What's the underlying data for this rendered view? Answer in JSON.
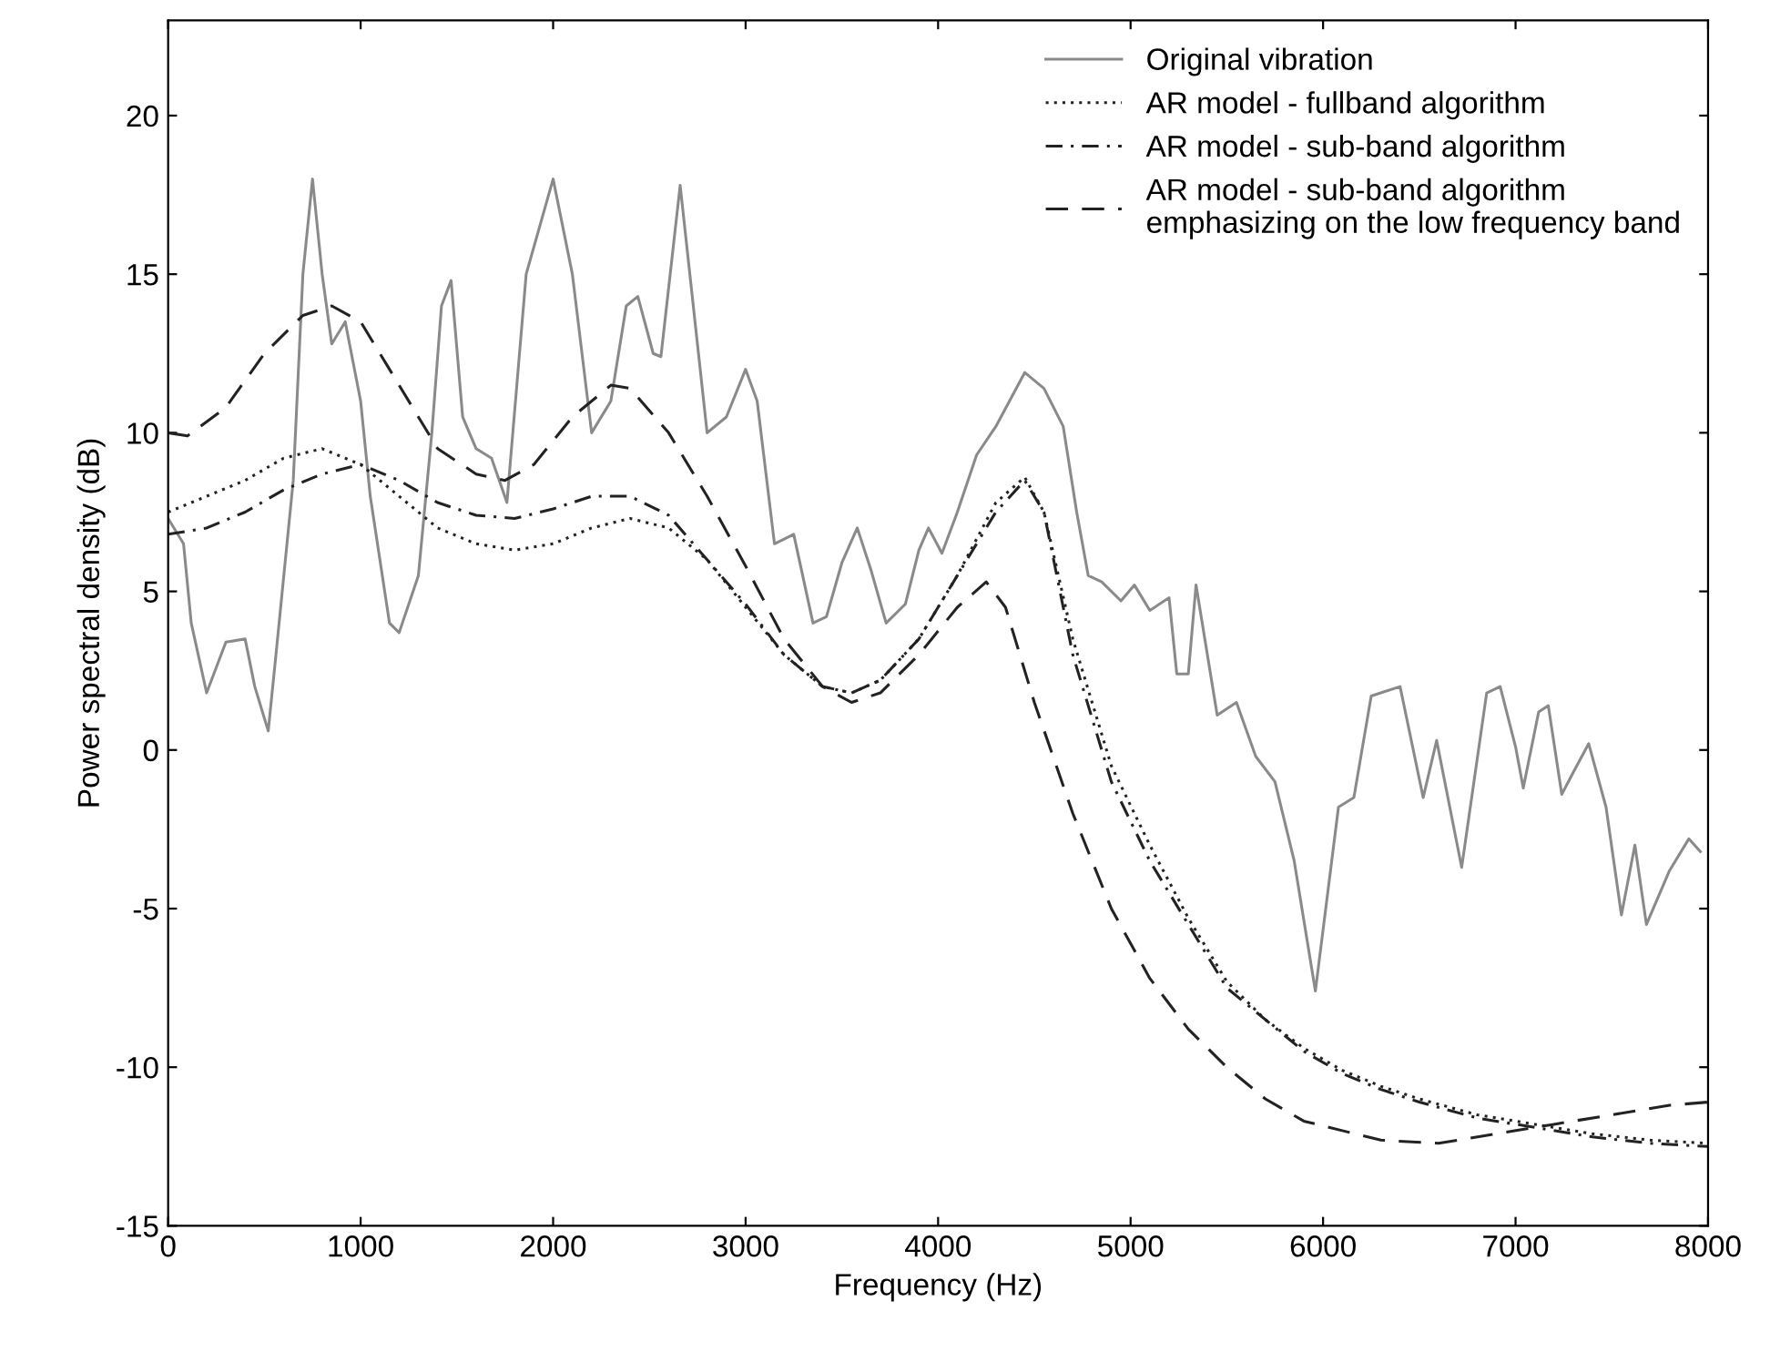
{
  "chart_data": {
    "type": "line",
    "xlabel": "Frequency (Hz)",
    "ylabel": "Power spectral density (dB)",
    "xlim": [
      0,
      8000
    ],
    "ylim": [
      -15,
      23
    ],
    "xticks": [
      0,
      1000,
      2000,
      3000,
      4000,
      5000,
      6000,
      7000,
      8000
    ],
    "yticks": [
      -15,
      -10,
      -5,
      0,
      5,
      10,
      15,
      20
    ],
    "grid": false,
    "legend": "top right",
    "marker": "none",
    "series": [
      {
        "name": "Original vibration",
        "color": "#8a8a8a",
        "line_style": "solid",
        "x": [
          0,
          80,
          120,
          200,
          300,
          400,
          450,
          520,
          560,
          650,
          700,
          750,
          800,
          850,
          920,
          1000,
          1050,
          1150,
          1200,
          1300,
          1370,
          1420,
          1470,
          1530,
          1600,
          1680,
          1760,
          1860,
          2000,
          2100,
          2200,
          2300,
          2380,
          2440,
          2520,
          2560,
          2660,
          2800,
          2900,
          3000,
          3060,
          3150,
          3250,
          3350,
          3420,
          3500,
          3580,
          3650,
          3730,
          3830,
          3900,
          3950,
          4020,
          4100,
          4200,
          4300,
          4450,
          4550,
          4650,
          4720,
          4780,
          4850,
          4950,
          5020,
          5100,
          5200,
          5240,
          5300,
          5340,
          5450,
          5550,
          5650,
          5750,
          5850,
          5960,
          6080,
          6160,
          6250,
          6400,
          6520,
          6590,
          6720,
          6850,
          6920,
          7000,
          7040,
          7120,
          7170,
          7240,
          7300,
          7380,
          7470,
          7550,
          7620,
          7680,
          7800,
          7900,
          7960
        ],
        "values": [
          7.3,
          6.5,
          4,
          1.8,
          3.4,
          3.5,
          2,
          0.6,
          3,
          8.5,
          15,
          18,
          15,
          12.8,
          13.5,
          11,
          8,
          4,
          3.7,
          5.5,
          10,
          14,
          14.8,
          10.5,
          9.5,
          9.2,
          7.8,
          15,
          18,
          15,
          10,
          11,
          14,
          14.3,
          12.5,
          12.4,
          17.8,
          10,
          10.5,
          12,
          11,
          6.5,
          6.8,
          4,
          4.2,
          5.9,
          7,
          5.7,
          4,
          4.6,
          6.3,
          7,
          6.2,
          7.5,
          9.3,
          10.2,
          11.9,
          11.4,
          10.2,
          7.5,
          5.5,
          5.3,
          4.7,
          5.2,
          4.4,
          4.8,
          2.4,
          2.4,
          5.2,
          1.1,
          1.5,
          -0.2,
          -1,
          -3.5,
          -7.6,
          -1.8,
          -1.5,
          1.7,
          2,
          -1.5,
          0.3,
          -3.7,
          1.8,
          2,
          0.1,
          -1.2,
          1.2,
          1.4,
          -1.4,
          -0.7,
          0.2,
          -1.8,
          -5.2,
          -3,
          -5.5,
          -3.8,
          -2.8,
          -3.2
        ]
      },
      {
        "name": "AR model - fullband algorithm",
        "color": "#222222",
        "line_style": "dotted",
        "x": [
          0,
          200,
          400,
          600,
          800,
          1000,
          1200,
          1400,
          1600,
          1800,
          2000,
          2200,
          2400,
          2600,
          2800,
          3000,
          3200,
          3400,
          3550,
          3700,
          3900,
          4100,
          4300,
          4450,
          4550,
          4700,
          4900,
          5100,
          5300,
          5500,
          5700,
          5900,
          6100,
          6300,
          6500,
          6800,
          7100,
          7400,
          7700,
          8000
        ],
        "values": [
          7.5,
          8,
          8.5,
          9.2,
          9.5,
          9,
          8,
          7,
          6.5,
          6.3,
          6.5,
          7,
          7.3,
          7,
          6,
          4.5,
          3,
          2,
          1.8,
          2.2,
          3.5,
          5.5,
          7.8,
          8.6,
          7.5,
          3.5,
          -0.5,
          -3,
          -5.3,
          -7.3,
          -8.5,
          -9.4,
          -10.1,
          -10.6,
          -11,
          -11.5,
          -11.8,
          -12.1,
          -12.3,
          -12.4
        ]
      },
      {
        "name": "AR model - sub-band algorithm",
        "color": "#222222",
        "line_style": "dashdot",
        "x": [
          0,
          200,
          400,
          600,
          800,
          1000,
          1200,
          1400,
          1600,
          1800,
          2000,
          2200,
          2400,
          2600,
          2800,
          3000,
          3200,
          3400,
          3550,
          3700,
          3900,
          4100,
          4300,
          4450,
          4550,
          4700,
          4900,
          5100,
          5300,
          5500,
          5700,
          5900,
          6100,
          6300,
          6500,
          6800,
          7100,
          7400,
          7700,
          8000
        ],
        "values": [
          6.8,
          7,
          7.5,
          8.2,
          8.7,
          9,
          8.5,
          7.8,
          7.4,
          7.3,
          7.6,
          8,
          8,
          7.4,
          6,
          4.6,
          3,
          2,
          1.8,
          2.2,
          3.5,
          5.5,
          7.5,
          8.5,
          7.5,
          3,
          -1,
          -3.5,
          -5.5,
          -7.5,
          -8.5,
          -9.5,
          -10.2,
          -10.7,
          -11.1,
          -11.6,
          -11.9,
          -12.2,
          -12.4,
          -12.5
        ]
      },
      {
        "name": "AR model - sub-band algorithm\nemphasizing on the low frequency band",
        "color": "#222222",
        "line_style": "dashed",
        "x": [
          0,
          100,
          300,
          500,
          700,
          850,
          1000,
          1200,
          1400,
          1600,
          1750,
          1900,
          2100,
          2300,
          2400,
          2600,
          2800,
          3000,
          3200,
          3400,
          3550,
          3700,
          3900,
          4100,
          4250,
          4350,
          4500,
          4700,
          4900,
          5100,
          5300,
          5500,
          5700,
          5900,
          6100,
          6300,
          6600,
          6900,
          7200,
          7500,
          7800,
          8000
        ],
        "values": [
          10,
          9.9,
          10.8,
          12.5,
          13.7,
          14,
          13.5,
          11.5,
          9.5,
          8.7,
          8.5,
          9,
          10.5,
          11.5,
          11.4,
          10,
          8,
          5.8,
          3.5,
          2,
          1.5,
          1.8,
          3,
          4.5,
          5.3,
          4.5,
          1.5,
          -2,
          -5,
          -7.2,
          -8.8,
          -10,
          -11,
          -11.7,
          -12,
          -12.3,
          -12.4,
          -12.1,
          -11.8,
          -11.5,
          -11.2,
          -11.1
        ]
      }
    ]
  }
}
